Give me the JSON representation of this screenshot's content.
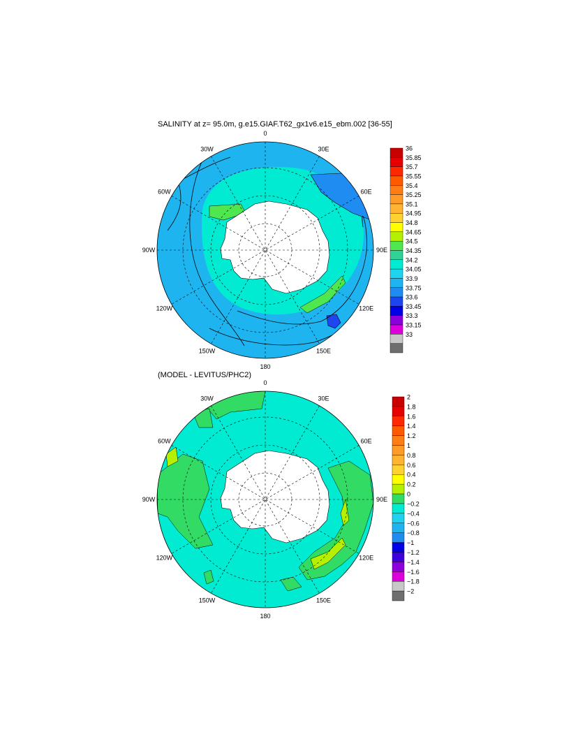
{
  "top_panel": {
    "title": "SALINITY at z=  95.0m, g.e15.GIAF.T62_gx1v6.e15_ebm.002 [36-55]",
    "longitude_labels": [
      "0",
      "30E",
      "60E",
      "90E",
      "120E",
      "150E",
      "180",
      "150W",
      "120W",
      "90W",
      "60W",
      "30W"
    ],
    "colorbar": {
      "levels": [
        "36",
        "35.85",
        "35.7",
        "35.55",
        "35.4",
        "35.25",
        "35.1",
        "34.95",
        "34.8",
        "34.65",
        "34.5",
        "34.35",
        "34.2",
        "34.05",
        "33.9",
        "33.75",
        "33.6",
        "33.45",
        "33.3",
        "33.15",
        "33"
      ],
      "colors": [
        "#c80000",
        "#e60000",
        "#ff2800",
        "#ff5a00",
        "#ff7d14",
        "#ff9b28",
        "#ffb432",
        "#ffd232",
        "#ffff00",
        "#b4f000",
        "#50e650",
        "#32d296",
        "#00ebd2",
        "#1ed2f0",
        "#1eb4f0",
        "#1e8cf0",
        "#1e46f0",
        "#0000e6",
        "#8c00dc",
        "#dc00dc",
        "#c8c8c8",
        "#6e6e6e"
      ]
    }
  },
  "bottom_panel": {
    "title": "(MODEL - LEVITUS/PHC2)",
    "longitude_labels": [
      "0",
      "30E",
      "60E",
      "90E",
      "120E",
      "150E",
      "180",
      "150W",
      "120W",
      "90W",
      "60W",
      "30W"
    ],
    "colorbar": {
      "levels": [
        "2",
        "1.8",
        "1.6",
        "1.4",
        "1.2",
        "1",
        "0.8",
        "0.6",
        "0.4",
        "0.2",
        "0",
        "−0.2",
        "−0.4",
        "−0.6",
        "−0.8",
        "−1",
        "−1.2",
        "−1.4",
        "−1.6",
        "−1.8",
        "−2"
      ],
      "colors": [
        "#c80000",
        "#e60000",
        "#ff2800",
        "#ff5a00",
        "#ff7d14",
        "#ff9b28",
        "#ffb432",
        "#ffd232",
        "#ffff00",
        "#b4f000",
        "#32dc64",
        "#00ebd2",
        "#1ed2f0",
        "#1eb4f0",
        "#1e8cf0",
        "#0000e6",
        "#3c00dc",
        "#8c00dc",
        "#dc00dc",
        "#c8c8c8",
        "#6e6e6e"
      ]
    }
  },
  "palette": {
    "land": "#ffffff",
    "ocean_main": "#1eb4f0",
    "shelf": "#00ebd2",
    "green_patch": "#50e650",
    "blue_patch": "#1e8cf0",
    "diff_ocean": "#00ebd2",
    "diff_green": "#32dc64",
    "diff_light_green": "#b4f000"
  }
}
